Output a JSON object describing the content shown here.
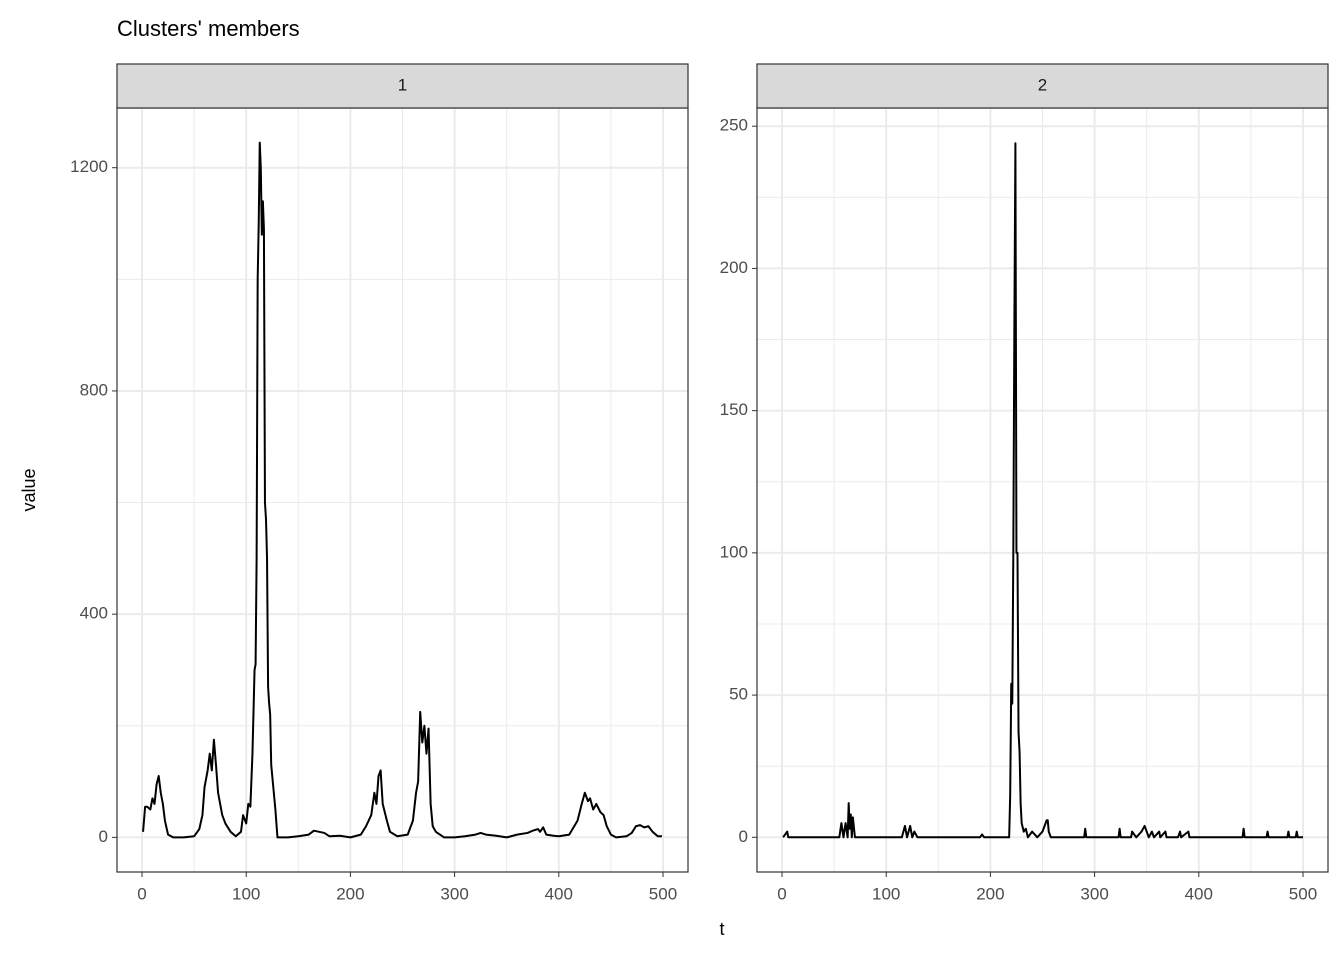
{
  "title": "Clusters' members",
  "x_label": "t",
  "y_label": "value",
  "chart_data": [
    {
      "type": "line",
      "facet": "1",
      "x": [
        1,
        3,
        5,
        8,
        10,
        12,
        14,
        16,
        18,
        20,
        22,
        25,
        30,
        40,
        50,
        55,
        58,
        60,
        63,
        65,
        67,
        69,
        71,
        73,
        75,
        77,
        80,
        85,
        90,
        95,
        97,
        100,
        102,
        104,
        106,
        108,
        109,
        110,
        111,
        112,
        113,
        114,
        115,
        116,
        117,
        118,
        119,
        120,
        121,
        122,
        123,
        124,
        126,
        128,
        130,
        140,
        150,
        160,
        165,
        170,
        175,
        180,
        190,
        200,
        210,
        215,
        220,
        223,
        225,
        227,
        229,
        231,
        233,
        235,
        238,
        245,
        255,
        260,
        263,
        265,
        267,
        269,
        271,
        273,
        275,
        277,
        279,
        282,
        290,
        300,
        310,
        320,
        325,
        330,
        340,
        350,
        360,
        370,
        375,
        380,
        382,
        385,
        388,
        395,
        400,
        410,
        418,
        422,
        425,
        428,
        430,
        433,
        436,
        440,
        443,
        446,
        450,
        455,
        465,
        470,
        474,
        478,
        482,
        486,
        490,
        495,
        499
      ],
      "series": [
        {
          "color": "#000000",
          "values": [
            10,
            55,
            55,
            50,
            70,
            60,
            95,
            110,
            80,
            60,
            30,
            5,
            0,
            0,
            2,
            15,
            40,
            90,
            120,
            150,
            120,
            175,
            130,
            80,
            60,
            40,
            25,
            10,
            2,
            10,
            40,
            25,
            60,
            55,
            150,
            300,
            310,
            500,
            1000,
            1100,
            1245,
            1200,
            1080,
            1140,
            1090,
            600,
            570,
            500,
            270,
            240,
            220,
            130,
            90,
            50,
            0,
            0,
            2,
            5,
            12,
            10,
            8,
            2,
            3,
            0,
            5,
            20,
            40,
            80,
            60,
            110,
            120,
            60,
            45,
            30,
            10,
            2,
            5,
            30,
            80,
            100,
            225,
            170,
            200,
            150,
            195,
            60,
            20,
            10,
            0,
            0,
            2,
            5,
            8,
            5,
            3,
            0,
            5,
            8,
            12,
            15,
            10,
            18,
            5,
            3,
            2,
            5,
            30,
            60,
            80,
            65,
            70,
            50,
            60,
            45,
            40,
            20,
            5,
            0,
            2,
            8,
            20,
            22,
            18,
            20,
            10,
            2,
            2
          ]
        }
      ],
      "xlim": [
        -24,
        524
      ],
      "xticks": [
        0,
        100,
        200,
        300,
        400,
        500
      ],
      "ylim": [
        -62,
        1307
      ],
      "yticks": [
        0,
        400,
        800,
        1200
      ],
      "grid": true
    },
    {
      "type": "line",
      "facet": "2",
      "x": [
        1,
        5,
        6,
        55,
        57,
        59,
        61,
        63,
        64,
        65,
        66,
        67,
        68,
        70,
        115,
        118,
        120,
        123,
        125,
        127,
        130,
        190,
        192,
        194,
        218,
        219,
        220,
        221,
        222,
        223,
        224,
        225,
        226,
        227,
        228,
        229,
        230,
        232,
        234,
        236,
        240,
        245,
        250,
        254,
        255,
        256,
        258,
        290,
        291,
        292,
        323,
        324,
        325,
        335,
        336,
        340,
        345,
        348,
        350,
        352,
        355,
        357,
        362,
        363,
        368,
        369,
        380,
        382,
        383,
        390,
        391,
        442,
        443,
        444,
        465,
        466,
        467,
        485,
        486,
        487,
        493,
        494,
        495,
        500
      ],
      "series": [
        {
          "color": "#000000",
          "values": [
            0,
            2,
            0,
            0,
            5,
            0,
            5,
            0,
            12,
            3,
            8,
            0,
            7,
            0,
            0,
            4,
            0,
            4,
            0,
            2,
            0,
            0,
            1,
            0,
            0,
            15,
            54,
            47,
            100,
            180,
            244,
            100,
            100,
            37,
            30,
            12,
            5,
            2,
            3,
            0,
            2,
            0,
            2,
            6,
            6,
            2,
            0,
            0,
            3,
            0,
            0,
            3,
            0,
            0,
            2,
            0,
            2,
            4,
            2,
            0,
            2,
            0,
            2,
            0,
            2,
            0,
            0,
            2,
            0,
            2,
            0,
            0,
            3,
            0,
            0,
            2,
            0,
            0,
            2,
            0,
            0,
            2,
            0,
            0
          ]
        }
      ],
      "xlim": [
        -24,
        524
      ],
      "xticks": [
        0,
        100,
        200,
        300,
        400,
        500
      ],
      "ylim": [
        -12.2,
        256.4
      ],
      "yticks": [
        0,
        50,
        100,
        150,
        200,
        250
      ],
      "grid": true
    }
  ]
}
